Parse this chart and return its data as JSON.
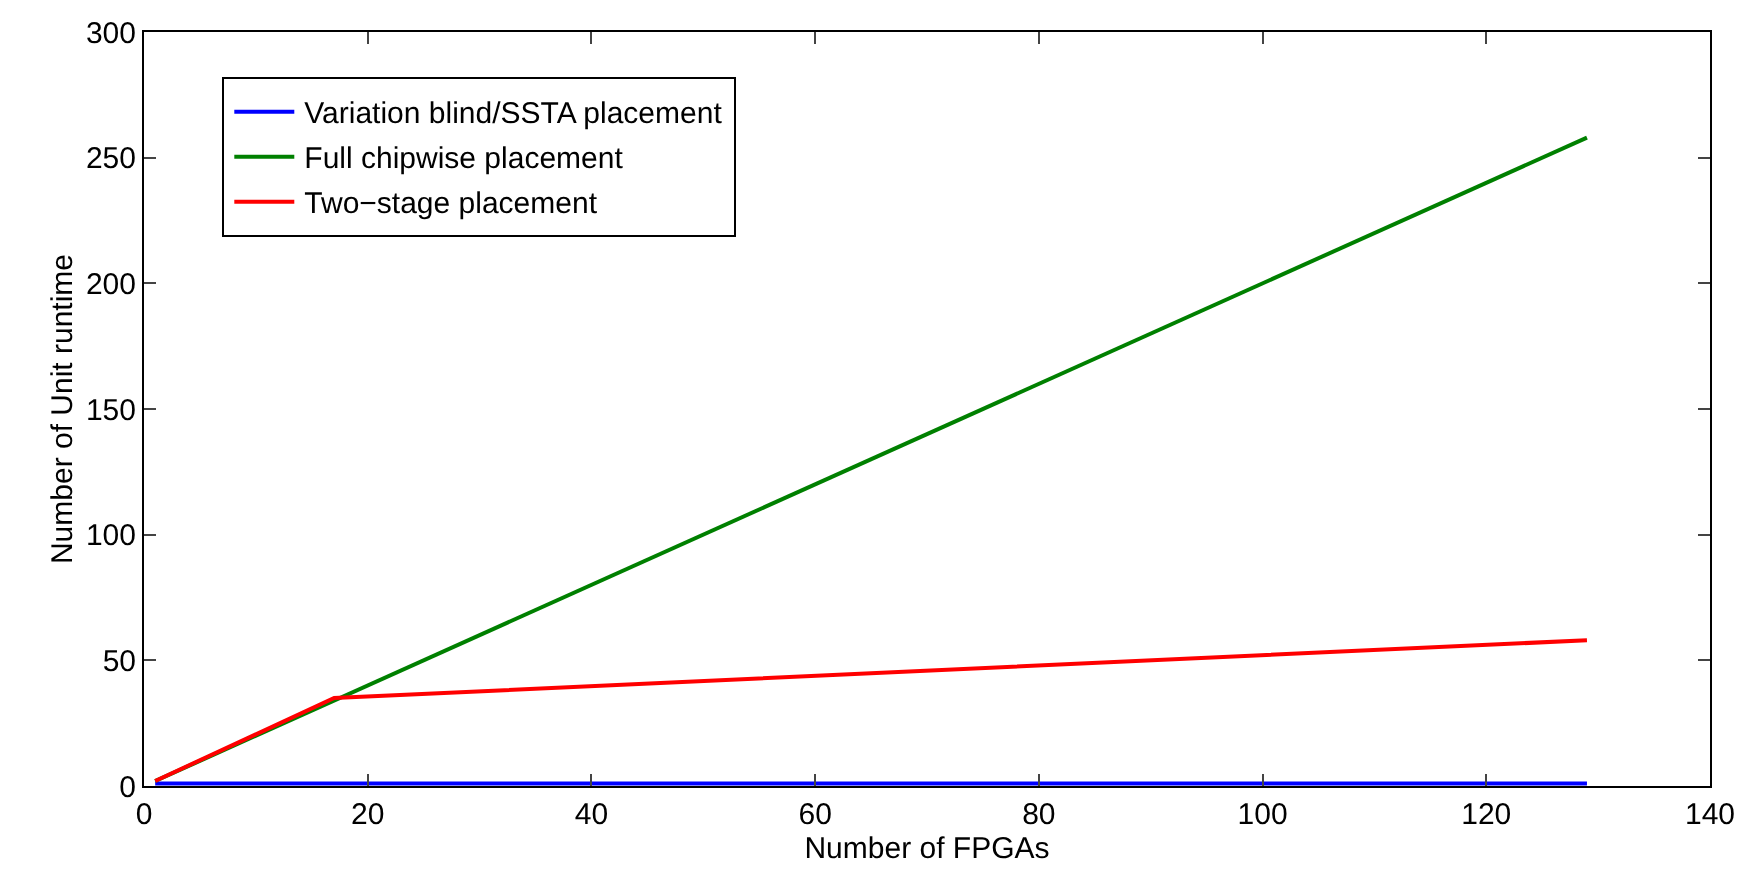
{
  "chart_data": {
    "type": "line",
    "xlabel": "Number of FPGAs",
    "ylabel": "Number of Unit runtime",
    "series": [
      {
        "name": "Variation blind/SSTA placement",
        "color": "#0000ff",
        "x": [
          1,
          129
        ],
        "values": [
          1,
          1
        ]
      },
      {
        "name": "Full chipwise placement",
        "color": "#008000",
        "x": [
          1,
          129
        ],
        "values": [
          2,
          258
        ]
      },
      {
        "name": "Two−stage placement",
        "color": "#ff0000",
        "x": [
          1,
          17,
          129
        ],
        "values": [
          2,
          35,
          58
        ]
      }
    ],
    "xlim": [
      0,
      140
    ],
    "xticks": [
      0,
      20,
      40,
      60,
      80,
      100,
      120,
      140
    ],
    "ylim": [
      0,
      300
    ],
    "yticks": [
      0,
      50,
      100,
      150,
      200,
      250,
      300
    ],
    "grid": false,
    "legend": "top left",
    "marker": "none",
    "line_style": "solid"
  }
}
